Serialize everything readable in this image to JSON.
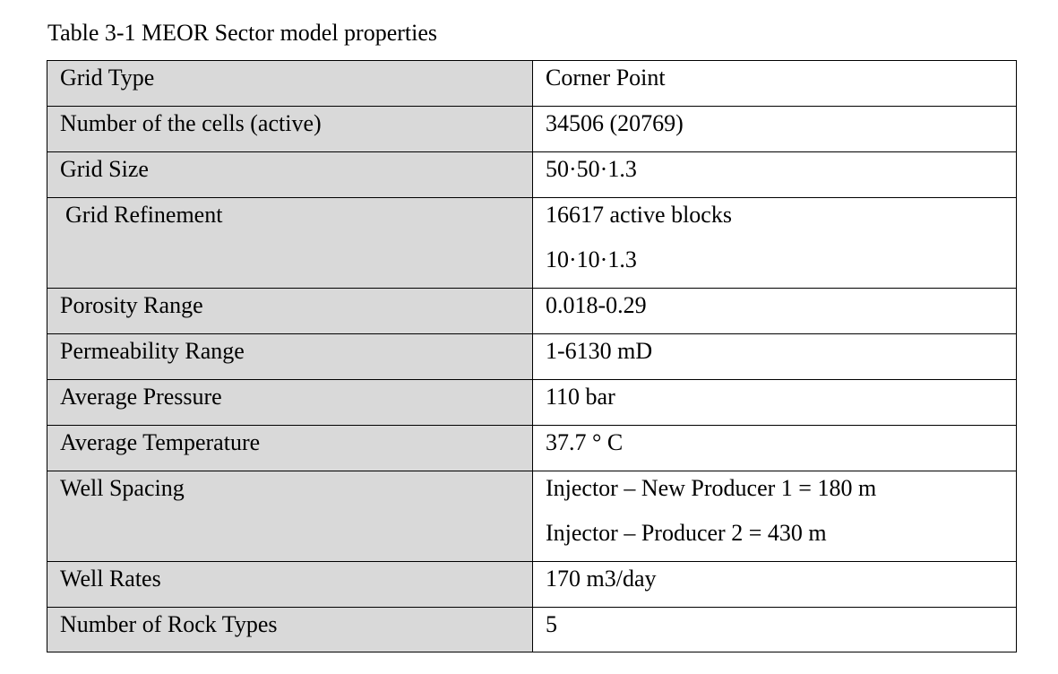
{
  "caption": "Table 3-1 MEOR Sector model properties",
  "rows": [
    {
      "label": "Grid Type",
      "value": [
        "Corner Point"
      ]
    },
    {
      "label": "Number of the cells (active)",
      "value": [
        "34506 (20769)"
      ]
    },
    {
      "label": "Grid Size",
      "value": [
        "50·50·1.3"
      ]
    },
    {
      "label": "Grid Refinement",
      "value": [
        "16617 active blocks",
        "10·10·1.3"
      ]
    },
    {
      "label": "Porosity Range",
      "value": [
        "0.018-0.29"
      ]
    },
    {
      "label": "Permeability Range",
      "value": [
        "1-6130 mD"
      ]
    },
    {
      "label": "Average Pressure",
      "value": [
        "110 bar"
      ]
    },
    {
      "label": "Average Temperature",
      "value": [
        "37.7 ° C"
      ]
    },
    {
      "label": "Well Spacing",
      "value": [
        "Injector – New Producer 1 = 180 m",
        "Injector – Producer 2 = 430 m"
      ]
    },
    {
      "label": "Well Rates",
      "value": [
        "170 m3/day"
      ]
    },
    {
      "label": "Number of Rock Types",
      "value": [
        "5"
      ]
    }
  ]
}
